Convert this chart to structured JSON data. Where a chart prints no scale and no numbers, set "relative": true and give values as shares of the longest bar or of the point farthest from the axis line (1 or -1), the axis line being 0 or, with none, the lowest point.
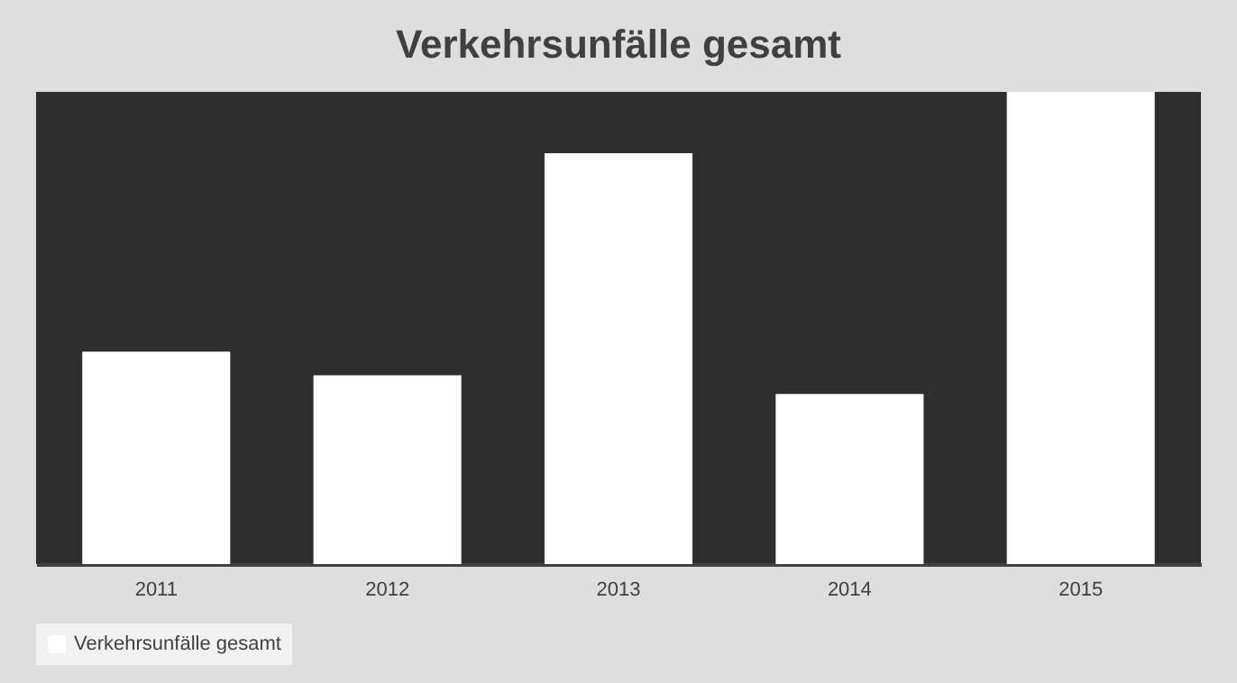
{
  "chart_data": {
    "type": "bar",
    "title": "Verkehrsunfälle gesamt",
    "categories": [
      "2011",
      "2012",
      "2013",
      "2014",
      "2015"
    ],
    "relative": true,
    "series": [
      {
        "name": "Verkehrsunfälle gesamt",
        "color": "#ffffff",
        "values": [
          0.45,
          0.4,
          0.87,
          0.36,
          1.0
        ]
      }
    ],
    "legend": "bottom"
  }
}
